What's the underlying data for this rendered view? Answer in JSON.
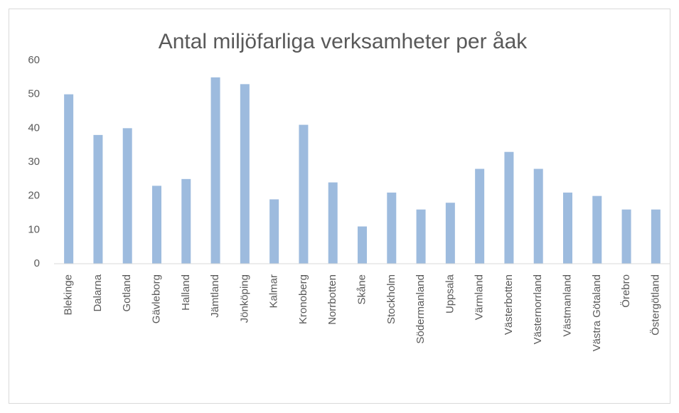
{
  "chart_data": {
    "type": "bar",
    "title": "Antal miljöfarliga verksamheter per åak",
    "categories": [
      "Blekinge",
      "Dalarna",
      "Gotland",
      "Gävleborg",
      "Halland",
      "Jämtland",
      "Jönköping",
      "Kalmar",
      "Kronoberg",
      "Norrbotten",
      "Skåne",
      "Stockholm",
      "Södermanland",
      "Uppsala",
      "Värmland",
      "Västerbotten",
      "Västernorrland",
      "Västmanland",
      "Västra Götaland",
      "Örebro",
      "Östergötland"
    ],
    "values": [
      50,
      38,
      40,
      23,
      25,
      55,
      53,
      19,
      41,
      24,
      11,
      21,
      16,
      18,
      28,
      33,
      28,
      21,
      20,
      16,
      16
    ],
    "color": "#9dbbde",
    "ylim": [
      0,
      60
    ],
    "yticks": [
      0,
      10,
      20,
      30,
      40,
      50,
      60
    ],
    "grid": false
  }
}
